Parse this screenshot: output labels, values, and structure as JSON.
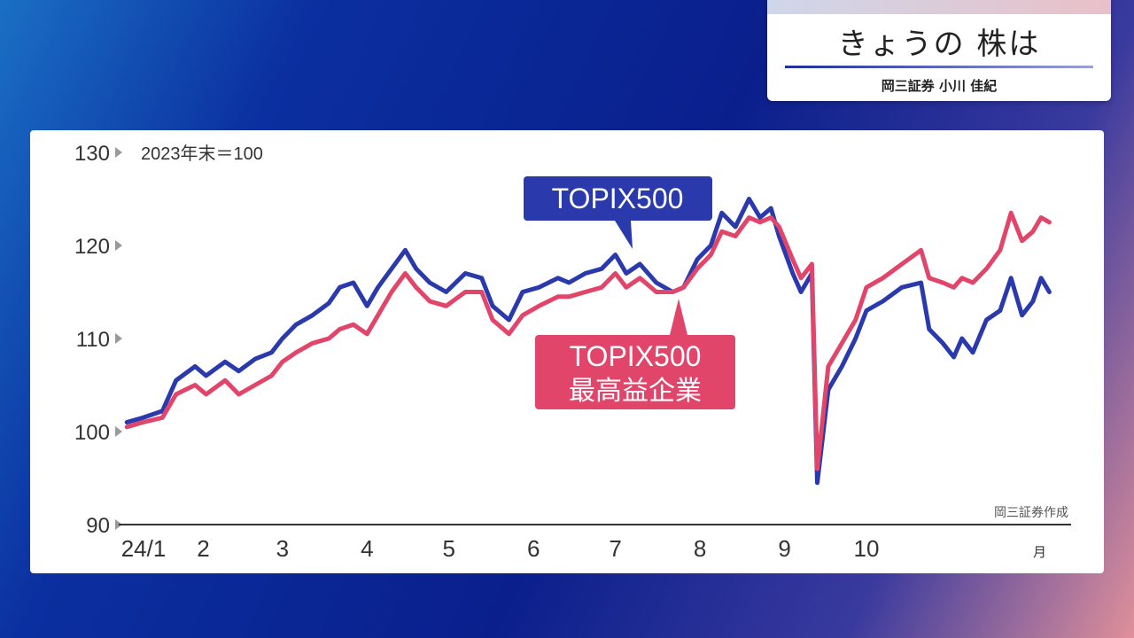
{
  "header": {
    "title": "きょうの 株は",
    "subtitle": "岡三証券 小川 佳紀"
  },
  "chart_data": {
    "type": "line",
    "unit_note": "2023年末＝100",
    "source_note": "岡三証券作成",
    "ylim": [
      90,
      130
    ],
    "y_ticks": [
      "130",
      "120",
      "110",
      "100",
      "90"
    ],
    "x_ticks": [
      "24/1",
      "2",
      "3",
      "4",
      "5",
      "6",
      "7",
      "8",
      "9",
      "10"
    ],
    "x_unit": "月",
    "colors": {
      "topix500": "#2a3aac",
      "highest_profit": "#e2456a"
    },
    "series": [
      {
        "name": "TOPIX500",
        "label_lines": [
          "TOPIX500"
        ],
        "color": "#2a3aac",
        "points": [
          [
            "2024-01-04",
            101.0
          ],
          [
            "2024-01-10",
            101.5
          ],
          [
            "2024-01-17",
            102.2
          ],
          [
            "2024-01-22",
            105.5
          ],
          [
            "2024-01-29",
            107.0
          ],
          [
            "2024-02-02",
            106.0
          ],
          [
            "2024-02-09",
            107.5
          ],
          [
            "2024-02-14",
            106.5
          ],
          [
            "2024-02-20",
            107.8
          ],
          [
            "2024-02-26",
            108.5
          ],
          [
            "2024-03-01",
            110.0
          ],
          [
            "2024-03-06",
            111.5
          ],
          [
            "2024-03-12",
            112.5
          ],
          [
            "2024-03-18",
            113.8
          ],
          [
            "2024-03-22",
            115.5
          ],
          [
            "2024-03-27",
            116.0
          ],
          [
            "2024-04-01",
            113.5
          ],
          [
            "2024-04-05",
            115.5
          ],
          [
            "2024-04-10",
            117.5
          ],
          [
            "2024-04-15",
            119.5
          ],
          [
            "2024-04-19",
            117.5
          ],
          [
            "2024-04-24",
            116.0
          ],
          [
            "2024-04-30",
            115.0
          ],
          [
            "2024-05-07",
            117.0
          ],
          [
            "2024-05-13",
            116.5
          ],
          [
            "2024-05-17",
            113.5
          ],
          [
            "2024-05-23",
            112.0
          ],
          [
            "2024-05-28",
            115.0
          ],
          [
            "2024-06-03",
            115.5
          ],
          [
            "2024-06-10",
            116.5
          ],
          [
            "2024-06-14",
            116.0
          ],
          [
            "2024-06-20",
            117.0
          ],
          [
            "2024-06-26",
            117.5
          ],
          [
            "2024-07-01",
            119.0
          ],
          [
            "2024-07-05",
            117.0
          ],
          [
            "2024-07-10",
            118.0
          ],
          [
            "2024-07-16",
            116.0
          ],
          [
            "2024-07-22",
            115.0
          ],
          [
            "2024-07-26",
            115.5
          ],
          [
            "2024-07-31",
            118.5
          ],
          [
            "2024-08-05",
            120.0
          ],
          [
            "2024-08-09",
            123.5
          ],
          [
            "2024-08-14",
            122.0
          ],
          [
            "2024-08-19",
            125.0
          ],
          [
            "2024-08-23",
            123.0
          ],
          [
            "2024-08-27",
            124.0
          ],
          [
            "2024-08-30",
            121.0
          ],
          [
            "2024-09-04",
            117.0
          ],
          [
            "2024-09-07",
            115.0
          ],
          [
            "2024-09-11",
            117.0
          ],
          [
            "2024-09-13",
            94.5
          ],
          [
            "2024-09-17",
            104.5
          ],
          [
            "2024-09-22",
            107.0
          ],
          [
            "2024-09-27",
            110.0
          ],
          [
            "2024-10-01",
            113.0
          ],
          [
            "2024-10-07",
            114.0
          ],
          [
            "2024-10-14",
            115.5
          ],
          [
            "2024-10-21",
            116.0
          ],
          [
            "2024-10-24",
            111.0
          ],
          [
            "2024-10-29",
            109.5
          ],
          [
            "2024-11-02",
            108.0
          ],
          [
            "2024-11-05",
            110.0
          ],
          [
            "2024-11-09",
            108.5
          ],
          [
            "2024-11-14",
            112.0
          ],
          [
            "2024-11-19",
            113.0
          ],
          [
            "2024-11-23",
            116.5
          ],
          [
            "2024-11-27",
            112.5
          ],
          [
            "2024-12-01",
            114.0
          ],
          [
            "2024-12-04",
            116.5
          ],
          [
            "2024-12-07",
            115.0
          ]
        ]
      },
      {
        "name": "TOPIX500 最高益企業",
        "label_lines": [
          "TOPIX500",
          "最高益企業"
        ],
        "color": "#e2456a",
        "points": [
          [
            "2024-01-04",
            100.5
          ],
          [
            "2024-01-10",
            101.0
          ],
          [
            "2024-01-17",
            101.5
          ],
          [
            "2024-01-22",
            104.0
          ],
          [
            "2024-01-29",
            105.0
          ],
          [
            "2024-02-02",
            104.0
          ],
          [
            "2024-02-09",
            105.5
          ],
          [
            "2024-02-14",
            104.0
          ],
          [
            "2024-02-20",
            105.0
          ],
          [
            "2024-02-26",
            106.0
          ],
          [
            "2024-03-01",
            107.5
          ],
          [
            "2024-03-06",
            108.5
          ],
          [
            "2024-03-12",
            109.5
          ],
          [
            "2024-03-18",
            110.0
          ],
          [
            "2024-03-22",
            111.0
          ],
          [
            "2024-03-27",
            111.5
          ],
          [
            "2024-04-01",
            110.5
          ],
          [
            "2024-04-05",
            112.5
          ],
          [
            "2024-04-10",
            115.0
          ],
          [
            "2024-04-15",
            117.0
          ],
          [
            "2024-04-19",
            115.5
          ],
          [
            "2024-04-24",
            114.0
          ],
          [
            "2024-04-30",
            113.5
          ],
          [
            "2024-05-07",
            115.0
          ],
          [
            "2024-05-13",
            115.0
          ],
          [
            "2024-05-17",
            112.0
          ],
          [
            "2024-05-23",
            110.5
          ],
          [
            "2024-05-28",
            112.5
          ],
          [
            "2024-06-03",
            113.5
          ],
          [
            "2024-06-10",
            114.5
          ],
          [
            "2024-06-14",
            114.5
          ],
          [
            "2024-06-20",
            115.0
          ],
          [
            "2024-06-26",
            115.5
          ],
          [
            "2024-07-01",
            117.0
          ],
          [
            "2024-07-05",
            115.5
          ],
          [
            "2024-07-10",
            116.5
          ],
          [
            "2024-07-16",
            115.0
          ],
          [
            "2024-07-22",
            115.0
          ],
          [
            "2024-07-26",
            115.5
          ],
          [
            "2024-07-31",
            117.5
          ],
          [
            "2024-08-05",
            119.0
          ],
          [
            "2024-08-09",
            121.5
          ],
          [
            "2024-08-14",
            121.0
          ],
          [
            "2024-08-19",
            123.0
          ],
          [
            "2024-08-23",
            122.5
          ],
          [
            "2024-08-27",
            123.0
          ],
          [
            "2024-08-30",
            122.0
          ],
          [
            "2024-09-04",
            118.5
          ],
          [
            "2024-09-07",
            116.5
          ],
          [
            "2024-09-11",
            118.0
          ],
          [
            "2024-09-13",
            96.0
          ],
          [
            "2024-09-17",
            107.0
          ],
          [
            "2024-09-22",
            109.5
          ],
          [
            "2024-09-27",
            112.0
          ],
          [
            "2024-10-01",
            115.5
          ],
          [
            "2024-10-07",
            116.5
          ],
          [
            "2024-10-14",
            118.0
          ],
          [
            "2024-10-21",
            119.5
          ],
          [
            "2024-10-24",
            116.5
          ],
          [
            "2024-10-29",
            116.0
          ],
          [
            "2024-11-02",
            115.5
          ],
          [
            "2024-11-05",
            116.5
          ],
          [
            "2024-11-09",
            116.0
          ],
          [
            "2024-11-14",
            117.5
          ],
          [
            "2024-11-19",
            119.5
          ],
          [
            "2024-11-23",
            123.5
          ],
          [
            "2024-11-27",
            120.5
          ],
          [
            "2024-12-01",
            121.5
          ],
          [
            "2024-12-04",
            123.0
          ],
          [
            "2024-12-07",
            122.5
          ]
        ]
      }
    ],
    "grid": false,
    "legend": "inline labels"
  }
}
